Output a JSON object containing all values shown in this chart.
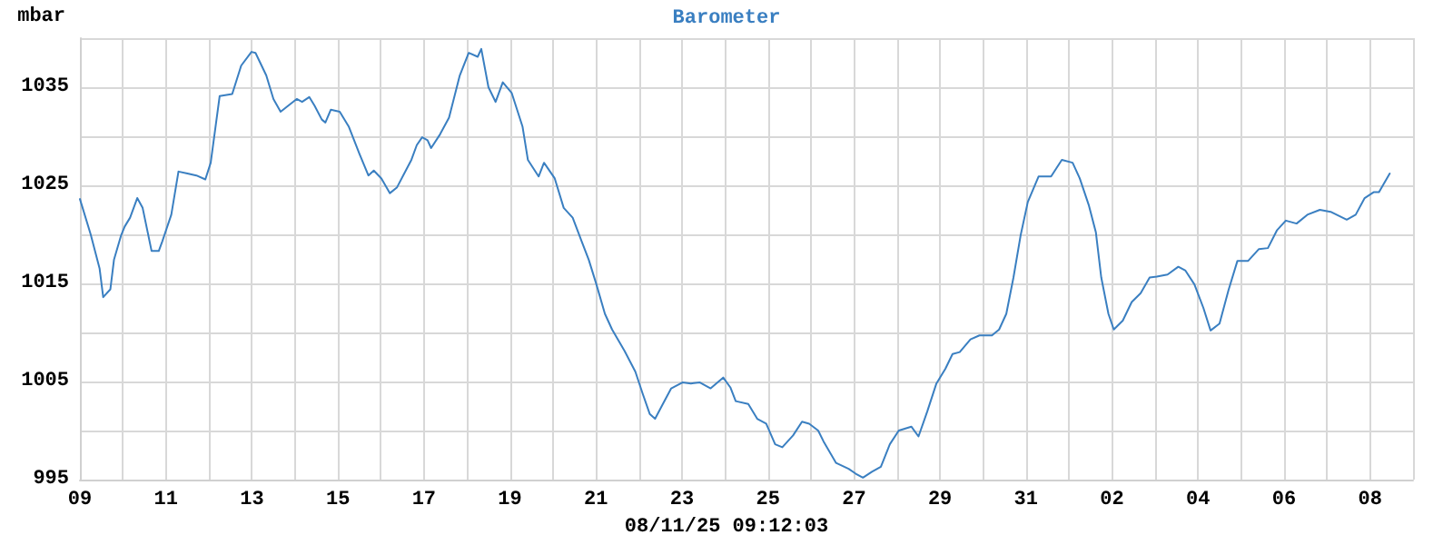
{
  "chart_data": {
    "type": "line",
    "title": "Barometer",
    "ylabel": "mbar",
    "annotations": [
      "08/11/25 09:12:03"
    ],
    "x": [
      "--07-09T00:00",
      "--07-09T06:00",
      "--07-09T11:00",
      "--07-09T13:00",
      "--07-09T17:00",
      "--07-09T19:00",
      "--07-09T23:00",
      "--07-10T01:00",
      "--07-10T04:00",
      "--07-10T08:00",
      "--07-10T11:00",
      "--07-10T16:00",
      "--07-10T20:00",
      "--07-10T22:00",
      "--07-11T03:00",
      "--07-11T07:00",
      "--07-11T12:00",
      "--07-11T17:00",
      "--07-11T22:00",
      "--07-12T01:00",
      "--07-12T06:00",
      "--07-12T13:00",
      "--07-12T18:00",
      "--07-12T23:45",
      "--07-13T02:00",
      "--07-13T08:00",
      "--07-13T12:00",
      "--07-13T16:00",
      "--07-14T01:00",
      "--07-14T04:00",
      "--07-14T08:00",
      "--07-14T11:00",
      "--07-14T15:00",
      "--07-14T17:00",
      "--07-14T20:00",
      "--07-15T01:00",
      "--07-15T06:00",
      "--07-15T12:00",
      "--07-15T17:00",
      "--07-15T20:00",
      "--07-16T00:15",
      "--07-16T05:00",
      "--07-16T09:00",
      "--07-16T13:00",
      "--07-16T17:00",
      "--07-16T20:00",
      "--07-16T23:00",
      "--07-17T02:00",
      "--07-17T04:00",
      "--07-17T09:00",
      "--07-17T14:00",
      "--07-17T20:00",
      "--07-18T01:00",
      "--07-18T06:00",
      "--07-18T08:00",
      "--07-18T12:00",
      "--07-18T16:00",
      "--07-18T20:00",
      "--07-19T01:00",
      "--07-19T07:00",
      "--07-19T10:00",
      "--07-19T16:00",
      "--07-19T19:00",
      "--07-20T01:00",
      "--07-20T06:00",
      "--07-20T11:00",
      "--07-20T16:00",
      "--07-20T20:00",
      "--07-21T00:15",
      "--07-21T05:00",
      "--07-21T09:00",
      "--07-21T16:00",
      "--07-21T22:00",
      "--07-22T02:00",
      "--07-22T06:00",
      "--07-22T09:00",
      "--07-22T13:00",
      "--07-22T18:00",
      "--07-23T00:15",
      "--07-23T05:00",
      "--07-23T10:00",
      "--07-23T16:00",
      "--07-23T23:00",
      "--07-24T03:00",
      "--07-24T06:00",
      "--07-24T13:00",
      "--07-24T18:00",
      "--07-24T23:00",
      "--07-25T04:00",
      "--07-25T08:00",
      "--07-25T14:00",
      "--07-25T19:00",
      "--07-25T23:00",
      "--07-26T04:00",
      "--07-26T07:00",
      "--07-26T14:00",
      "--07-26T21:00",
      "--07-27T01:00",
      "--07-27T05:00",
      "--07-27T10:00",
      "--07-27T15:00",
      "--07-27T20:00",
      "--07-28T01:00",
      "--07-28T08:00",
      "--07-28T12:00",
      "--07-28T17:00",
      "--07-28T22:00",
      "--07-29T03:00",
      "--07-29T07:00",
      "--07-29T11:00",
      "--07-29T17:00",
      "--07-29T22:00",
      "--07-30T05:00",
      "--07-30T09:00",
      "--07-30T13:00",
      "--07-30T17:00",
      "--07-30T21:00",
      "--07-31T01:00",
      "--07-31T07:00",
      "--07-31T14:00",
      "--07-31T20:00",
      "--08-01T02:00",
      "--08-01T06:00",
      "--08-01T11:00",
      "--08-01T15:00",
      "--08-01T18:00",
      "--08-01T22:00",
      "--08-02T01:00",
      "--08-02T06:00",
      "--08-02T11:00",
      "--08-02T16:00",
      "--08-02T21:00",
      "--08-03T01:00",
      "--08-03T07:00",
      "--08-03T13:00",
      "--08-03T17:00",
      "--08-03T22:00",
      "--08-04T03:00",
      "--08-04T07:00",
      "--08-04T12:00",
      "--08-04T17:00",
      "--08-04T22:00",
      "--08-05T04:00",
      "--08-05T10:00",
      "--08-05T15:00",
      "--08-05T20:00",
      "--08-06T01:00",
      "--08-06T07:00",
      "--08-06T13:00",
      "--08-06T20:00",
      "--08-07T02:00",
      "--08-07T11:00",
      "--08-07T16:00",
      "--08-07T21:00",
      "--08-08T02:00",
      "--08-08T05:00",
      "--08-08T11:00"
    ],
    "series": [
      {
        "color": "#3a7fc1",
        "values": [
          1023.6,
          1020.0,
          1016.5,
          1013.6,
          1014.4,
          1017.4,
          1019.9,
          1020.8,
          1021.7,
          1023.7,
          1022.7,
          1018.3,
          1018.3,
          1019.3,
          1022.0,
          1026.4,
          1026.2,
          1026.0,
          1025.6,
          1027.3,
          1034.1,
          1034.3,
          1037.2,
          1038.6,
          1038.5,
          1036.2,
          1033.8,
          1032.5,
          1033.8,
          1033.5,
          1034.0,
          1033.1,
          1031.7,
          1031.4,
          1032.7,
          1032.5,
          1031.0,
          1028.2,
          1026.0,
          1026.5,
          1025.7,
          1024.2,
          1024.8,
          1026.2,
          1027.6,
          1029.1,
          1029.9,
          1029.6,
          1028.8,
          1030.2,
          1031.9,
          1036.2,
          1038.5,
          1038.1,
          1038.9,
          1035.0,
          1033.5,
          1035.5,
          1034.4,
          1031.0,
          1027.6,
          1025.9,
          1027.3,
          1025.7,
          1022.7,
          1021.7,
          1019.3,
          1017.4,
          1014.9,
          1011.9,
          1010.3,
          1008.1,
          1006.0,
          1003.8,
          1001.7,
          1001.2,
          1002.6,
          1004.3,
          1004.9,
          1004.8,
          1004.9,
          1004.3,
          1005.4,
          1004.4,
          1003.0,
          1002.7,
          1001.2,
          1000.7,
          998.6,
          998.3,
          999.5,
          1000.9,
          1000.7,
          1000.0,
          998.9,
          996.7,
          996.1,
          995.6,
          995.2,
          995.8,
          996.3,
          998.6,
          1000.0,
          1000.4,
          999.4,
          1002.0,
          1004.8,
          1006.3,
          1007.8,
          1008.0,
          1009.3,
          1009.7,
          1009.7,
          1010.3,
          1011.9,
          1015.6,
          1019.9,
          1023.3,
          1025.9,
          1025.9,
          1027.6,
          1027.3,
          1025.7,
          1023.0,
          1020.2,
          1015.6,
          1011.9,
          1010.3,
          1011.2,
          1013.1,
          1014.0,
          1015.6,
          1015.7,
          1015.9,
          1016.7,
          1016.3,
          1014.9,
          1012.5,
          1010.2,
          1010.9,
          1014.3,
          1017.3,
          1017.3,
          1018.5,
          1018.6,
          1020.4,
          1021.4,
          1021.1,
          1022.0,
          1022.5,
          1022.3,
          1021.5,
          1022.0,
          1023.7,
          1024.3,
          1024.3,
          1026.2
        ]
      }
    ],
    "xlim": [
      "--07-09",
      "--08-09"
    ],
    "xticks": [
      {
        "value": "--07-09",
        "label": "09"
      },
      {
        "value": "--07-10",
        "label": null
      },
      {
        "value": "--07-11",
        "label": "11"
      },
      {
        "value": "--07-12",
        "label": null
      },
      {
        "value": "--07-13",
        "label": "13"
      },
      {
        "value": "--07-14",
        "label": null
      },
      {
        "value": "--07-15",
        "label": "15"
      },
      {
        "value": "--07-16",
        "label": null
      },
      {
        "value": "--07-17",
        "label": "17"
      },
      {
        "value": "--07-18",
        "label": null
      },
      {
        "value": "--07-19",
        "label": "19"
      },
      {
        "value": "--07-20",
        "label": null
      },
      {
        "value": "--07-21",
        "label": "21"
      },
      {
        "value": "--07-22",
        "label": null
      },
      {
        "value": "--07-23",
        "label": "23"
      },
      {
        "value": "--07-24",
        "label": null
      },
      {
        "value": "--07-25",
        "label": "25"
      },
      {
        "value": "--07-26",
        "label": null
      },
      {
        "value": "--07-27",
        "label": "27"
      },
      {
        "value": "--07-28",
        "label": null
      },
      {
        "value": "--07-29",
        "label": "29"
      },
      {
        "value": "--07-30",
        "label": null
      },
      {
        "value": "--07-31",
        "label": "31"
      },
      {
        "value": "--08-01",
        "label": null
      },
      {
        "value": "--08-02",
        "label": "02"
      },
      {
        "value": "--08-03",
        "label": null
      },
      {
        "value": "--08-04",
        "label": "04"
      },
      {
        "value": "--08-05",
        "label": null
      },
      {
        "value": "--08-06",
        "label": "06"
      },
      {
        "value": "--08-07",
        "label": null
      },
      {
        "value": "--08-08",
        "label": "08"
      },
      {
        "value": "--08-09",
        "label": null
      }
    ],
    "ylim": [
      995,
      1040
    ],
    "yticks": [
      995,
      {
        "value": 1000,
        "label": null
      },
      1005,
      {
        "value": 1010,
        "label": null
      },
      1015,
      {
        "value": 1020,
        "label": null
      },
      1025,
      {
        "value": 1030,
        "label": null
      },
      1035,
      {
        "value": 1040,
        "label": null
      }
    ],
    "grid": true,
    "marker": "none",
    "line_style": "solid"
  }
}
